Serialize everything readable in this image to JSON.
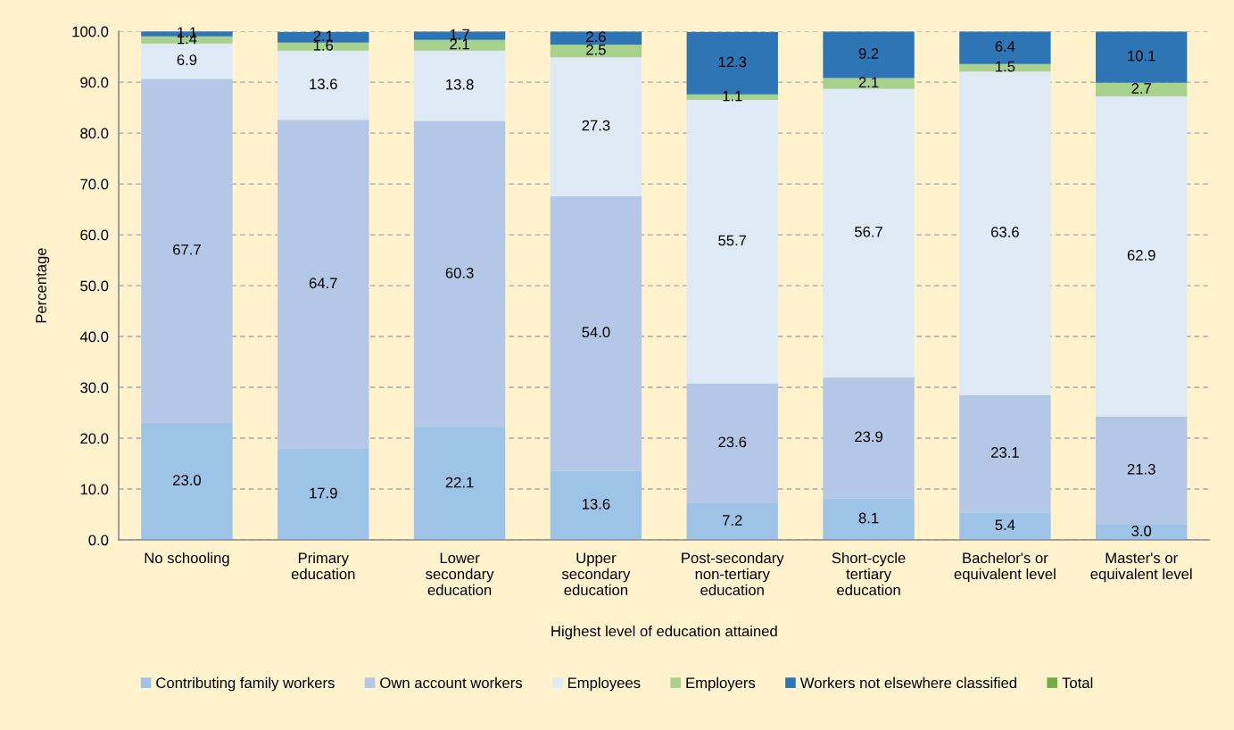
{
  "chart_data": {
    "type": "bar",
    "stacked": true,
    "categories": [
      "No schooling",
      "Primary\neducation",
      "Lower\nsecondary\neducation",
      "Upper\nsecondary\neducation",
      "Post-secondary\nnon-tertiary\neducation",
      "Short-cycle\ntertiary\neducation",
      "Bachelor's or\nequivalent level",
      "Master's or\nequivalent level"
    ],
    "series": [
      {
        "name": "Contributing family workers",
        "color": "#9dc3e6",
        "values": [
          23.0,
          17.9,
          22.1,
          13.6,
          7.2,
          8.1,
          5.4,
          3.0
        ],
        "value_labels": [
          "23.0",
          "17.9",
          "22.1",
          "13.6",
          "7.2",
          "8.1",
          "5.4",
          "3.0"
        ]
      },
      {
        "name": "Own account workers",
        "color": "#b4c7e7",
        "values": [
          67.7,
          64.7,
          60.3,
          54.0,
          23.6,
          23.9,
          23.1,
          21.3
        ],
        "value_labels": [
          "67.7",
          "64.7",
          "60.3",
          "54.0",
          "23.6",
          "23.9",
          "23.1",
          "21.3"
        ]
      },
      {
        "name": "Employees",
        "color": "#deebf7",
        "values": [
          6.9,
          13.6,
          13.8,
          27.3,
          55.7,
          56.7,
          63.6,
          62.9
        ],
        "value_labels": [
          "6.9",
          "13.6",
          "13.8",
          "27.3",
          "55.7",
          "56.7",
          "63.6",
          "62.9"
        ]
      },
      {
        "name": "Employers",
        "color": "#a9d18e",
        "values": [
          1.4,
          1.6,
          2.1,
          2.5,
          1.1,
          2.1,
          1.5,
          2.7
        ],
        "value_labels": [
          "1.4",
          "1.6",
          "2.1",
          "2.5",
          "1.1",
          "2.1",
          "1.5",
          "2.7"
        ]
      },
      {
        "name": "Workers not elsewhere classified",
        "color": "#2e75b6",
        "values": [
          1.1,
          2.1,
          1.7,
          2.6,
          12.3,
          9.2,
          6.4,
          10.1
        ],
        "value_labels": [
          "1.1",
          "2.1",
          "1.7",
          "2.6",
          "12.3",
          "9.2",
          "6.4",
          "10.1"
        ]
      },
      {
        "name": "Total",
        "color": "#70ad47",
        "values": [
          null,
          null,
          null,
          null,
          null,
          null,
          null,
          null
        ]
      }
    ],
    "xlabel": "Highest level of education attained",
    "ylabel": "Percentage",
    "ylim": [
      0,
      100
    ],
    "yticks": [
      {
        "value": 0,
        "label": "0.0"
      },
      {
        "value": 10,
        "label": "10.0"
      },
      {
        "value": 20,
        "label": "20.0"
      },
      {
        "value": 30,
        "label": "30.0"
      },
      {
        "value": 40,
        "label": "40.0"
      },
      {
        "value": 50,
        "label": "50.0"
      },
      {
        "value": 60,
        "label": "60.0"
      },
      {
        "value": 70,
        "label": "70.0"
      },
      {
        "value": 80,
        "label": "80.0"
      },
      {
        "value": 90,
        "label": "90.0"
      },
      {
        "value": 100,
        "label": "100.0"
      }
    ],
    "grid": "y",
    "legend": "bottom"
  }
}
